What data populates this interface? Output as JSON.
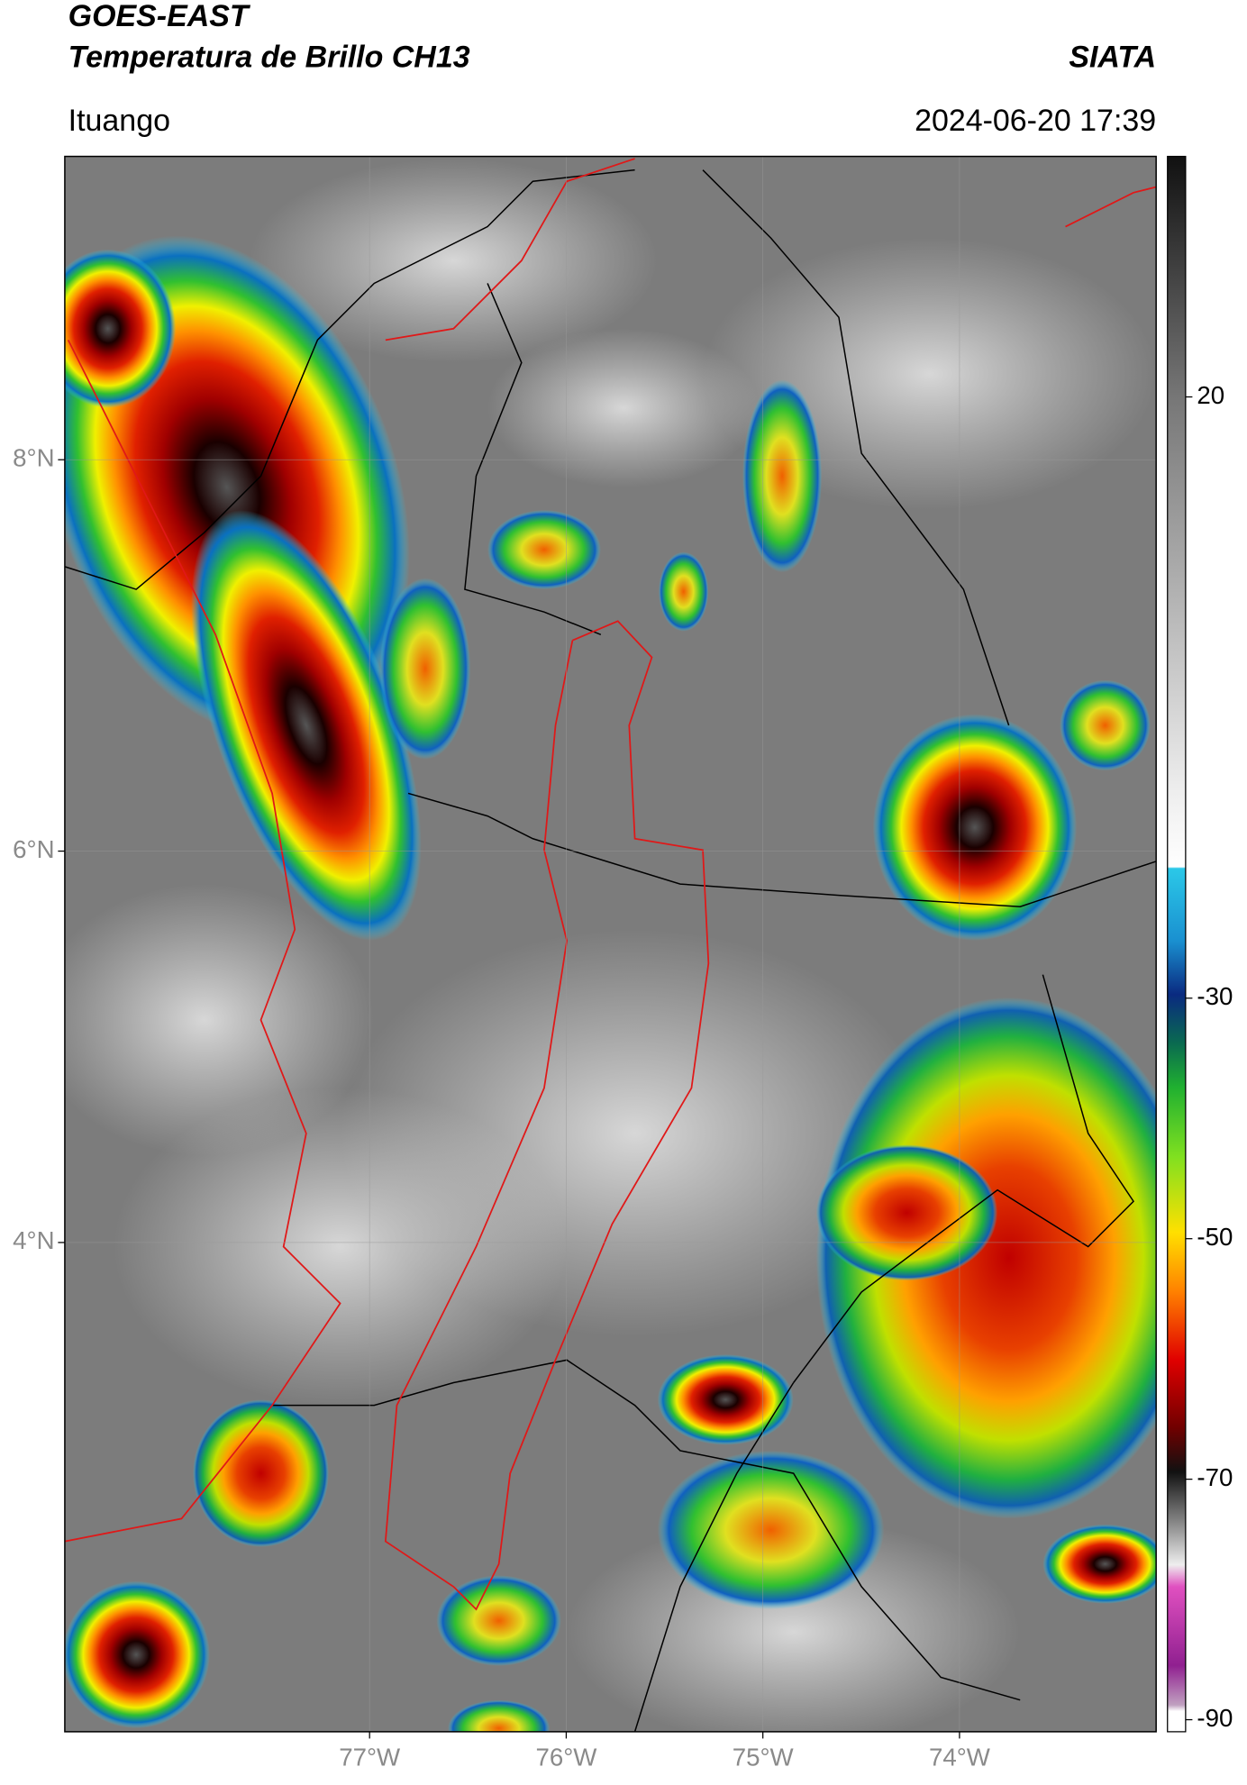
{
  "chart_data": {
    "type": "map",
    "title": "GOES-EAST",
    "subtitle": "Temperatura de Brillo CH13",
    "brand": "SIATA",
    "region": "Ituango",
    "timestamp": "2024-06-20 17:39",
    "xlim": [
      -78.55,
      -73
    ],
    "ylim": [
      1.5,
      9.55
    ],
    "xticks": [
      {
        "value": -77,
        "label": "77°W"
      },
      {
        "value": -76,
        "label": "76°W"
      },
      {
        "value": -75,
        "label": "75°W"
      },
      {
        "value": -74,
        "label": "74°W"
      }
    ],
    "yticks": [
      {
        "value": 8,
        "label": "8°N"
      },
      {
        "value": 6,
        "label": "6°N"
      },
      {
        "value": 4,
        "label": "4°N"
      }
    ],
    "grid": true,
    "colorbar": {
      "lim": [
        -91,
        40
      ],
      "ticks": [
        20,
        -30,
        -50,
        -70,
        -90
      ]
    }
  }
}
